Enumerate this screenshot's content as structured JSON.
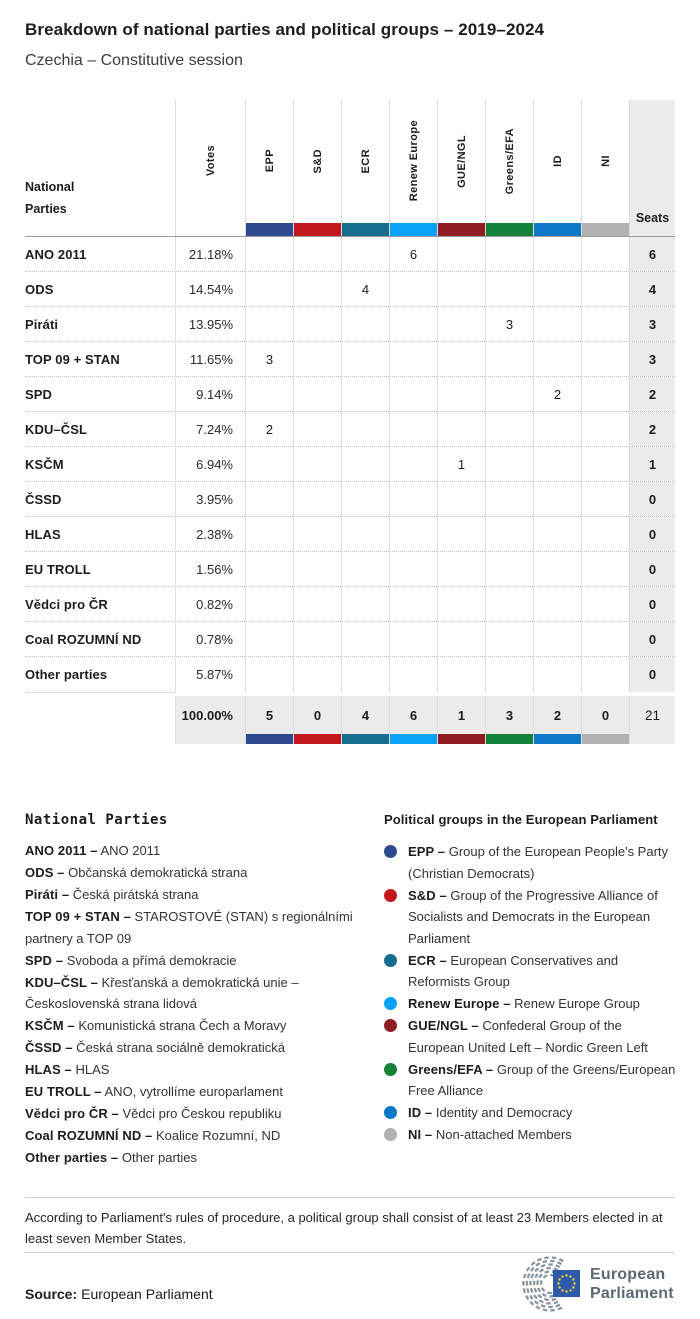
{
  "header": {
    "title": "Breakdown of national parties and political groups – 2019–2024",
    "subtitle": "Czechia – Constitutive session"
  },
  "table": {
    "corner_label_line1": "National",
    "corner_label_line2": "Parties",
    "votes_label": "Votes",
    "seats_label": "Seats",
    "groups": [
      {
        "id": "EPP",
        "color": "#2e4a8f"
      },
      {
        "id": "S&D",
        "color": "#c3181d"
      },
      {
        "id": "ECR",
        "color": "#156e8e"
      },
      {
        "id": "Renew Europe",
        "color": "#0aa2f5"
      },
      {
        "id": "GUE/NGL",
        "color": "#8f1d21"
      },
      {
        "id": "Greens/EFA",
        "color": "#15803a"
      },
      {
        "id": "ID",
        "color": "#0e78c8"
      },
      {
        "id": "NI",
        "color": "#b1b1b1"
      }
    ],
    "rows": [
      {
        "party": "ANO 2011",
        "votes": "21.18%",
        "cells": [
          "",
          "",
          "",
          "6",
          "",
          "",
          "",
          ""
        ],
        "seats": "6"
      },
      {
        "party": "ODS",
        "votes": "14.54%",
        "cells": [
          "",
          "",
          "4",
          "",
          "",
          "",
          "",
          ""
        ],
        "seats": "4"
      },
      {
        "party": "Piráti",
        "votes": "13.95%",
        "cells": [
          "",
          "",
          "",
          "",
          "",
          "3",
          "",
          ""
        ],
        "seats": "3"
      },
      {
        "party": "TOP 09 + STAN",
        "votes": "11.65%",
        "cells": [
          "3",
          "",
          "",
          "",
          "",
          "",
          "",
          ""
        ],
        "seats": "3"
      },
      {
        "party": "SPD",
        "votes": "9.14%",
        "cells": [
          "",
          "",
          "",
          "",
          "",
          "",
          "2",
          ""
        ],
        "seats": "2"
      },
      {
        "party": "KDU–ČSL",
        "votes": "7.24%",
        "cells": [
          "2",
          "",
          "",
          "",
          "",
          "",
          "",
          ""
        ],
        "seats": "2"
      },
      {
        "party": "KSČM",
        "votes": "6.94%",
        "cells": [
          "",
          "",
          "",
          "",
          "1",
          "",
          "",
          ""
        ],
        "seats": "1"
      },
      {
        "party": "ČSSD",
        "votes": "3.95%",
        "cells": [
          "",
          "",
          "",
          "",
          "",
          "",
          "",
          ""
        ],
        "seats": "0"
      },
      {
        "party": "HLAS",
        "votes": "2.38%",
        "cells": [
          "",
          "",
          "",
          "",
          "",
          "",
          "",
          ""
        ],
        "seats": "0"
      },
      {
        "party": "EU TROLL",
        "votes": "1.56%",
        "cells": [
          "",
          "",
          "",
          "",
          "",
          "",
          "",
          ""
        ],
        "seats": "0"
      },
      {
        "party": "Vědci pro ČR",
        "votes": "0.82%",
        "cells": [
          "",
          "",
          "",
          "",
          "",
          "",
          "",
          ""
        ],
        "seats": "0"
      },
      {
        "party": "Coal ROZUMNÍ ND",
        "votes": "0.78%",
        "cells": [
          "",
          "",
          "",
          "",
          "",
          "",
          "",
          ""
        ],
        "seats": "0"
      },
      {
        "party": "Other parties",
        "votes": "5.87%",
        "cells": [
          "",
          "",
          "",
          "",
          "",
          "",
          "",
          ""
        ],
        "seats": "0"
      }
    ],
    "total": {
      "votes": "100.00%",
      "by_group": [
        "5",
        "0",
        "4",
        "6",
        "1",
        "3",
        "2",
        "0"
      ],
      "seats": "21"
    }
  },
  "legend_parties": {
    "title": "National Parties",
    "items": [
      {
        "abbr": "ANO 2011",
        "name": "ANO 2011"
      },
      {
        "abbr": "ODS",
        "name": "Občanská demokratická strana"
      },
      {
        "abbr": "Piráti",
        "name": "Česká pirátská strana"
      },
      {
        "abbr": "TOP 09 + STAN",
        "name": "STAROSTOVÉ (STAN) s regionálními partnery a TOP 09"
      },
      {
        "abbr": "SPD",
        "name": "Svoboda a přímá demokracie"
      },
      {
        "abbr": "KDU–ČSL",
        "name": "Křesťanská a demokratická unie – Československá strana lidová"
      },
      {
        "abbr": "KSČM",
        "name": "Komunistická strana Čech a Moravy"
      },
      {
        "abbr": "ČSSD",
        "name": "Česká strana sociálně demokratická"
      },
      {
        "abbr": "HLAS",
        "name": "HLAS"
      },
      {
        "abbr": "EU TROLL",
        "name": "ANO, vytrollíme europarlament"
      },
      {
        "abbr": "Vědci pro ČR",
        "name": "Vědci pro Českou republiku"
      },
      {
        "abbr": "Coal ROZUMNÍ ND",
        "name": "Koalice Rozumní, ND"
      },
      {
        "abbr": "Other parties",
        "name": "Other parties"
      }
    ]
  },
  "legend_groups": {
    "title": "Political groups in the European Parliament",
    "items": [
      {
        "abbr": "EPP",
        "color": "#2e4a8f",
        "name": "Group of the European People's Party (Christian Democrats)"
      },
      {
        "abbr": "S&D",
        "color": "#c3181d",
        "name": "Group of the Progressive Alliance of Socialists and Democrats in the European Parliament"
      },
      {
        "abbr": "ECR",
        "color": "#156e8e",
        "name": "European Conservatives and Reformists Group"
      },
      {
        "abbr": "Renew Europe",
        "color": "#0aa2f5",
        "name": "Renew Europe Group"
      },
      {
        "abbr": "GUE/NGL",
        "color": "#8f1d21",
        "name": "Confederal Group of the European United Left – Nordic Green Left"
      },
      {
        "abbr": "Greens/EFA",
        "color": "#15803a",
        "name": "Group of the Greens/European Free Alliance"
      },
      {
        "abbr": "ID",
        "color": "#0e78c8",
        "name": "Identity and Democracy"
      },
      {
        "abbr": "NI",
        "color": "#b1b1b1",
        "name": "Non-attached Members"
      }
    ]
  },
  "footnote": "According to Parliament's rules of procedure, a political group shall consist of at least 23 Members elected in at least seven Member States.",
  "source": {
    "label": "Source:",
    "value": "European Parliament"
  },
  "logo": {
    "line1": "European",
    "line2": "Parliament"
  },
  "chart_data": {
    "type": "table",
    "title": "Breakdown of national parties and political groups – 2019–2024",
    "subtitle": "Czechia – Constitutive session",
    "columns": [
      "Votes",
      "EPP",
      "S&D",
      "ECR",
      "Renew Europe",
      "GUE/NGL",
      "Greens/EFA",
      "ID",
      "NI",
      "Seats"
    ],
    "rows": [
      {
        "party": "ANO 2011",
        "votes_pct": 21.18,
        "group": "Renew Europe",
        "seats": 6
      },
      {
        "party": "ODS",
        "votes_pct": 14.54,
        "group": "ECR",
        "seats": 4
      },
      {
        "party": "Piráti",
        "votes_pct": 13.95,
        "group": "Greens/EFA",
        "seats": 3
      },
      {
        "party": "TOP 09 + STAN",
        "votes_pct": 11.65,
        "group": "EPP",
        "seats": 3
      },
      {
        "party": "SPD",
        "votes_pct": 9.14,
        "group": "ID",
        "seats": 2
      },
      {
        "party": "KDU–ČSL",
        "votes_pct": 7.24,
        "group": "EPP",
        "seats": 2
      },
      {
        "party": "KSČM",
        "votes_pct": 6.94,
        "group": "GUE/NGL",
        "seats": 1
      },
      {
        "party": "ČSSD",
        "votes_pct": 3.95,
        "group": null,
        "seats": 0
      },
      {
        "party": "HLAS",
        "votes_pct": 2.38,
        "group": null,
        "seats": 0
      },
      {
        "party": "EU TROLL",
        "votes_pct": 1.56,
        "group": null,
        "seats": 0
      },
      {
        "party": "Vědci pro ČR",
        "votes_pct": 0.82,
        "group": null,
        "seats": 0
      },
      {
        "party": "Coal ROZUMNÍ ND",
        "votes_pct": 0.78,
        "group": null,
        "seats": 0
      },
      {
        "party": "Other parties",
        "votes_pct": 5.87,
        "group": null,
        "seats": 0
      }
    ],
    "totals": {
      "votes_pct": 100.0,
      "EPP": 5,
      "S&D": 0,
      "ECR": 4,
      "Renew Europe": 6,
      "GUE/NGL": 1,
      "Greens/EFA": 3,
      "ID": 2,
      "NI": 0,
      "seats": 21
    }
  }
}
